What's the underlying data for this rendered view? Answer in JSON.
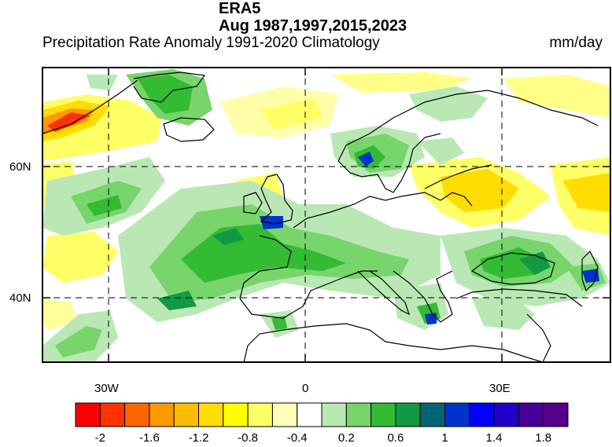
{
  "figure": {
    "title_main": "ERA5",
    "title_period": "Aug 1987,1997,2015,2023",
    "subtitle": "Precipitation Rate Anomaly  1991-2020 Climatology",
    "units": "mm/day"
  },
  "axes": {
    "lat_ticks": [
      "60N",
      "40N"
    ],
    "lon_ticks": [
      "30W",
      "0",
      "30E"
    ]
  },
  "colorbar": {
    "colors": [
      "#ff0000",
      "#ff3300",
      "#ff6600",
      "#ff9900",
      "#ffbb00",
      "#ffdd00",
      "#ffff00",
      "#ffff66",
      "#ffffbb",
      "#ffffff",
      "#b9e8b4",
      "#77d56b",
      "#33bb33",
      "#119944",
      "#006677",
      "#0033cc",
      "#0000ff",
      "#2200cc",
      "#440099",
      "#550088"
    ],
    "labels": [
      "-2",
      "-1.6",
      "-1.2",
      "-0.8",
      "-0.4",
      "0.2",
      "0.6",
      "1",
      "1.4",
      "1.8"
    ]
  },
  "chart_data": {
    "type": "heatmap",
    "title": "ERA5 Aug 1987,1997,2015,2023",
    "subtitle": "Precipitation Rate Anomaly  1991-2020 Climatology",
    "units": "mm/day",
    "lon_range": [
      -40,
      45
    ],
    "lat_range": [
      30,
      75
    ],
    "lat_ticks": [
      "60N",
      "40N"
    ],
    "lon_ticks": [
      "30W",
      "0",
      "30E"
    ],
    "colorbar_levels": [
      -2,
      -1.8,
      -1.6,
      -1.4,
      -1.2,
      -1,
      -0.8,
      -0.6,
      -0.4,
      -0.2,
      0.2,
      0.4,
      0.6,
      0.8,
      1,
      1.2,
      1.4,
      1.6,
      1.8,
      2
    ],
    "colorbar_labels": [
      "-2",
      "-1.6",
      "-1.2",
      "-0.8",
      "-0.4",
      "0.2",
      "0.6",
      "1",
      "1.4",
      "1.8"
    ]
  }
}
